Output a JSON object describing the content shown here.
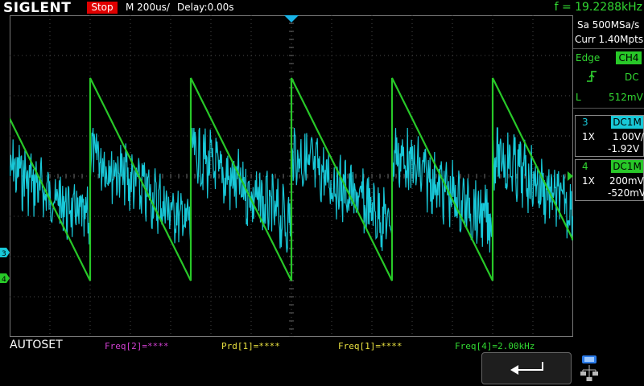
{
  "header": {
    "brand": "SIGLENT",
    "run_state": "Stop",
    "timebase": "M 200us/",
    "delay": "Delay:0.00s",
    "frequency": "f = 19.2288kHz"
  },
  "acquisition": {
    "sample_rate": "Sa 500MSa/s",
    "memory_depth": "Curr 1.40Mpts"
  },
  "trigger": {
    "type": "Edge",
    "source": "CH4",
    "slope_icon": "rising-edge-icon",
    "coupling": "DC",
    "level_label": "L",
    "level_value": "512mV"
  },
  "channels": [
    {
      "number": "3",
      "coupling": "DC1M",
      "probe": "1X",
      "scale": "1.00V/",
      "offset": "-1.92V",
      "color": "#18c8d8"
    },
    {
      "number": "4",
      "coupling": "DC1M",
      "probe": "1X",
      "scale": "200mV/",
      "offset": "-520mV",
      "color": "#28c828"
    }
  ],
  "markers": {
    "ch3": "3",
    "ch4": "4"
  },
  "bottom": {
    "autoset": "AUTOSET",
    "measurements": [
      {
        "label": "Freq[2]=****",
        "color": "#d040d0"
      },
      {
        "label": "Prd[1]=****",
        "color": "#e8e040"
      },
      {
        "label": "Freq[1]=****",
        "color": "#e8e040"
      },
      {
        "label": "Freq[4]=2.00kHz",
        "color": "#32d932"
      }
    ],
    "back_icon": "return-arrow-icon",
    "network_icon": "network-icon"
  },
  "colors": {
    "ch3_trace": "#18c8d8",
    "ch4_trace": "#28c828",
    "grid": "#4a4a4a",
    "accent_green": "#32d932"
  }
}
